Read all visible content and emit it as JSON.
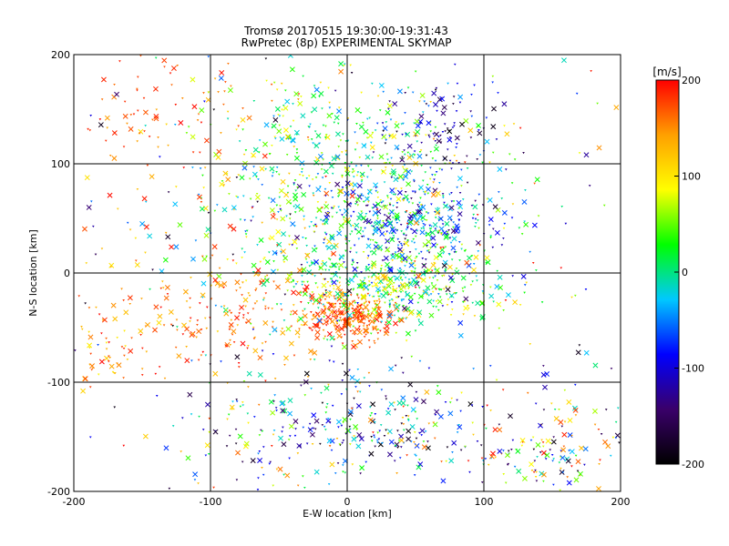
{
  "chart_data": {
    "type": "scatter",
    "title": "Tromsø 20170515 19:30:00-19:31:43",
    "subtitle": "RwPretec (8p) EXPERIMENTAL SKYMAP",
    "xlabel": "E-W location [km]",
    "ylabel": "N-S location [km]",
    "xlim": [
      -200,
      200
    ],
    "ylim": [
      -200,
      200
    ],
    "xticks": [
      -200,
      -100,
      0,
      100,
      200
    ],
    "yticks": [
      -200,
      -100,
      0,
      100,
      200
    ],
    "grid": true,
    "colorbar": {
      "label": "[m/s]",
      "range": [
        -200,
        200
      ],
      "ticks": [
        200,
        100,
        0,
        -100,
        -200
      ],
      "colormap": [
        "#000000",
        "#3a006a",
        "#0000ff",
        "#00c8ff",
        "#00ff00",
        "#ffff00",
        "#ffa000",
        "#ff0000"
      ]
    },
    "clusters": [
      {
        "cx": 0,
        "cy": -40,
        "sx": 16,
        "sy": 10,
        "n": 260,
        "vmin": 140,
        "vmax": 200
      },
      {
        "cx": 30,
        "cy": -15,
        "sx": 40,
        "sy": 15,
        "n": 320,
        "vmin": -30,
        "vmax": 120
      },
      {
        "cx": 40,
        "cy": 40,
        "sx": 40,
        "sy": 30,
        "n": 520,
        "vmin": -150,
        "vmax": 60
      },
      {
        "cx": -5,
        "cy": 110,
        "sx": 55,
        "sy": 40,
        "n": 420,
        "vmin": -60,
        "vmax": 120
      },
      {
        "cx": 70,
        "cy": 130,
        "sx": 22,
        "sy": 22,
        "n": 90,
        "vmin": -200,
        "vmax": -60
      },
      {
        "cx": -85,
        "cy": -40,
        "sx": 40,
        "sy": 25,
        "n": 170,
        "vmin": 120,
        "vmax": 200
      },
      {
        "cx": -175,
        "cy": -75,
        "sx": 15,
        "sy": 15,
        "n": 50,
        "vmin": 90,
        "vmax": 200
      },
      {
        "cx": 0,
        "cy": -135,
        "sx": 35,
        "sy": 22,
        "n": 130,
        "vmin": -200,
        "vmax": 60
      },
      {
        "cx": -60,
        "cy": -150,
        "sx": 30,
        "sy": 25,
        "n": 90,
        "vmin": -200,
        "vmax": 200
      },
      {
        "cx": 150,
        "cy": -165,
        "sx": 25,
        "sy": 25,
        "n": 120,
        "vmin": -200,
        "vmax": 200
      },
      {
        "cx": 60,
        "cy": -150,
        "sx": 40,
        "sy": 30,
        "n": 110,
        "vmin": -200,
        "vmax": 200
      },
      {
        "cx": -140,
        "cy": 150,
        "sx": 40,
        "sy": 35,
        "n": 90,
        "vmin": 130,
        "vmax": 200
      },
      {
        "cx": -30,
        "cy": 20,
        "sx": 60,
        "sy": 40,
        "n": 260,
        "vmin": -60,
        "vmax": 200
      },
      {
        "cx": 0,
        "cy": 0,
        "sx": 140,
        "sy": 140,
        "n": 300,
        "vmin": -200,
        "vmax": 200
      }
    ]
  }
}
